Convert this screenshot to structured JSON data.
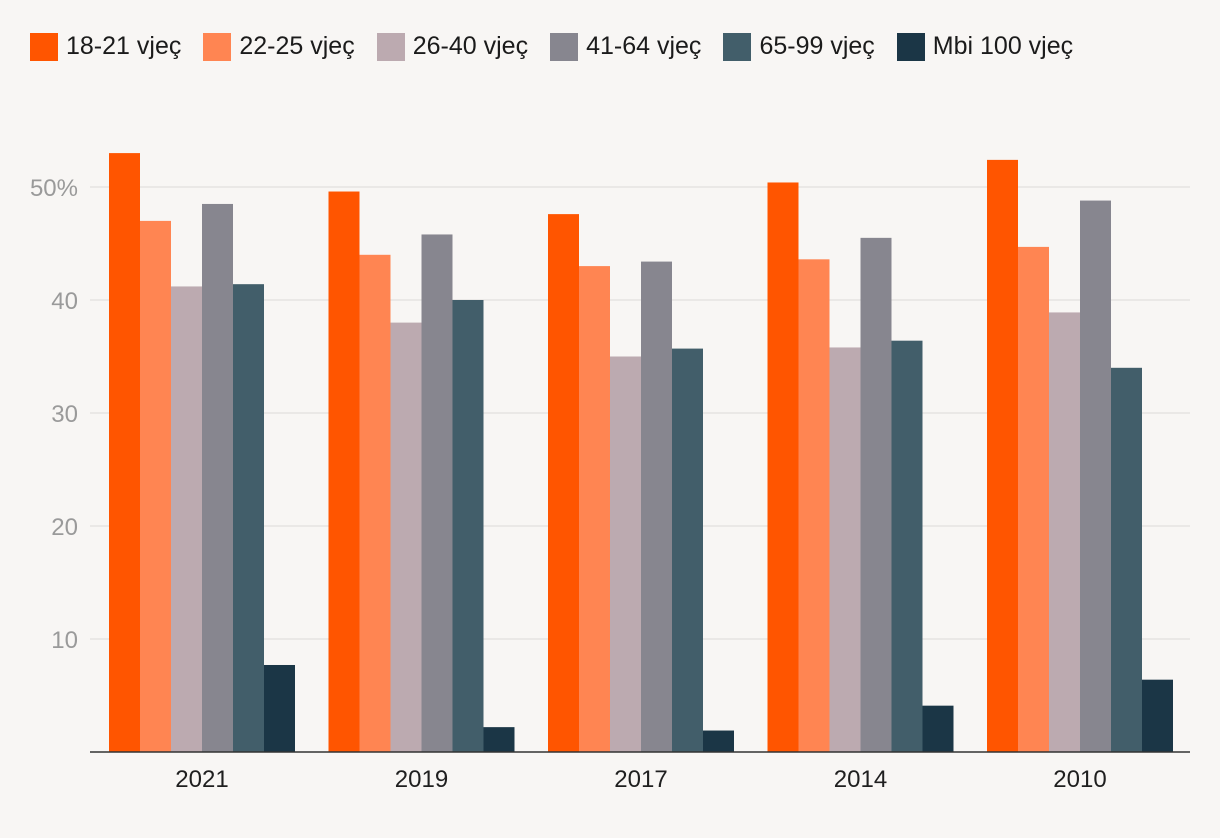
{
  "chart_data": {
    "type": "bar",
    "categories": [
      "2021",
      "2019",
      "2017",
      "2014",
      "2010"
    ],
    "series": [
      {
        "name": "18-21 vjeç",
        "color": "#ff5500",
        "values": [
          53.0,
          49.6,
          47.6,
          50.4,
          52.4
        ]
      },
      {
        "name": "22-25 vjeç",
        "color": "#ff8552",
        "values": [
          47.0,
          44.0,
          43.0,
          43.6,
          44.7
        ]
      },
      {
        "name": "26-40 vjeç",
        "color": "#bcaab0",
        "values": [
          41.2,
          38.0,
          35.0,
          35.8,
          38.9
        ]
      },
      {
        "name": "41-64 vjeç",
        "color": "#87868f",
        "values": [
          48.5,
          45.8,
          43.4,
          45.5,
          48.8
        ]
      },
      {
        "name": "65-99 vjeç",
        "color": "#425e6a",
        "values": [
          41.4,
          40.0,
          35.7,
          36.4,
          34.0
        ]
      },
      {
        "name": "Mbi 100 vjeç",
        "color": "#1b3646",
        "values": [
          7.7,
          2.2,
          1.9,
          4.1,
          6.4
        ]
      }
    ],
    "yticks": [
      {
        "value": 10,
        "label": "10"
      },
      {
        "value": 20,
        "label": "20"
      },
      {
        "value": 30,
        "label": "30"
      },
      {
        "value": 40,
        "label": "40"
      },
      {
        "value": 50,
        "label": "50%"
      }
    ],
    "ylim": [
      0,
      55
    ],
    "grid": true,
    "legend_position": "top-left"
  }
}
